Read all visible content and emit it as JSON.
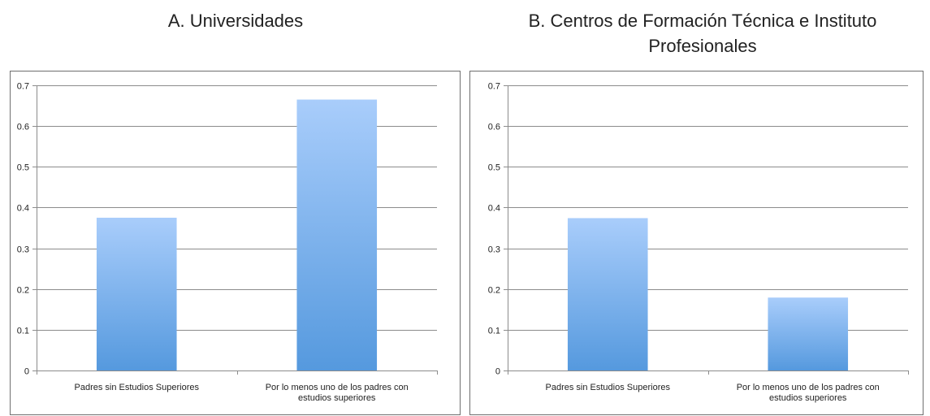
{
  "titles": {
    "a": "A. Universidades",
    "b_line1": "B. Centros de Formación Técnica e Instituto",
    "b_line2": "Profesionales"
  },
  "colors": {
    "bar_top": "#a9cdfb",
    "bar_bottom": "#5599de",
    "grid": "#8c8c8c",
    "border": "#6f6f6f"
  },
  "chart_data": [
    {
      "type": "bar",
      "title": "A. Universidades",
      "categories": [
        [
          "Padres sin Estudios Superiores"
        ],
        [
          "Por lo menos uno de los padres con",
          "estudios superiores"
        ]
      ],
      "values": [
        0.375,
        0.665
      ],
      "yticks": [
        "0",
        "0.1",
        "0.2",
        "0.3",
        "0.4",
        "0.5",
        "0.6",
        "0.7"
      ],
      "ylim": [
        0,
        0.7
      ],
      "grid": true,
      "legend": "none"
    },
    {
      "type": "bar",
      "title": "B. Centros de Formación Técnica e Instituto Profesionales",
      "categories": [
        [
          "Padres sin Estudios Superiores"
        ],
        [
          "Por lo menos uno de los padres con",
          "estudios superiores"
        ]
      ],
      "values": [
        0.374,
        0.179
      ],
      "yticks": [
        "0",
        "0.1",
        "0.2",
        "0.3",
        "0.4",
        "0.5",
        "0.6",
        "0.7"
      ],
      "ylim": [
        0,
        0.7
      ],
      "grid": true,
      "legend": "none"
    }
  ]
}
